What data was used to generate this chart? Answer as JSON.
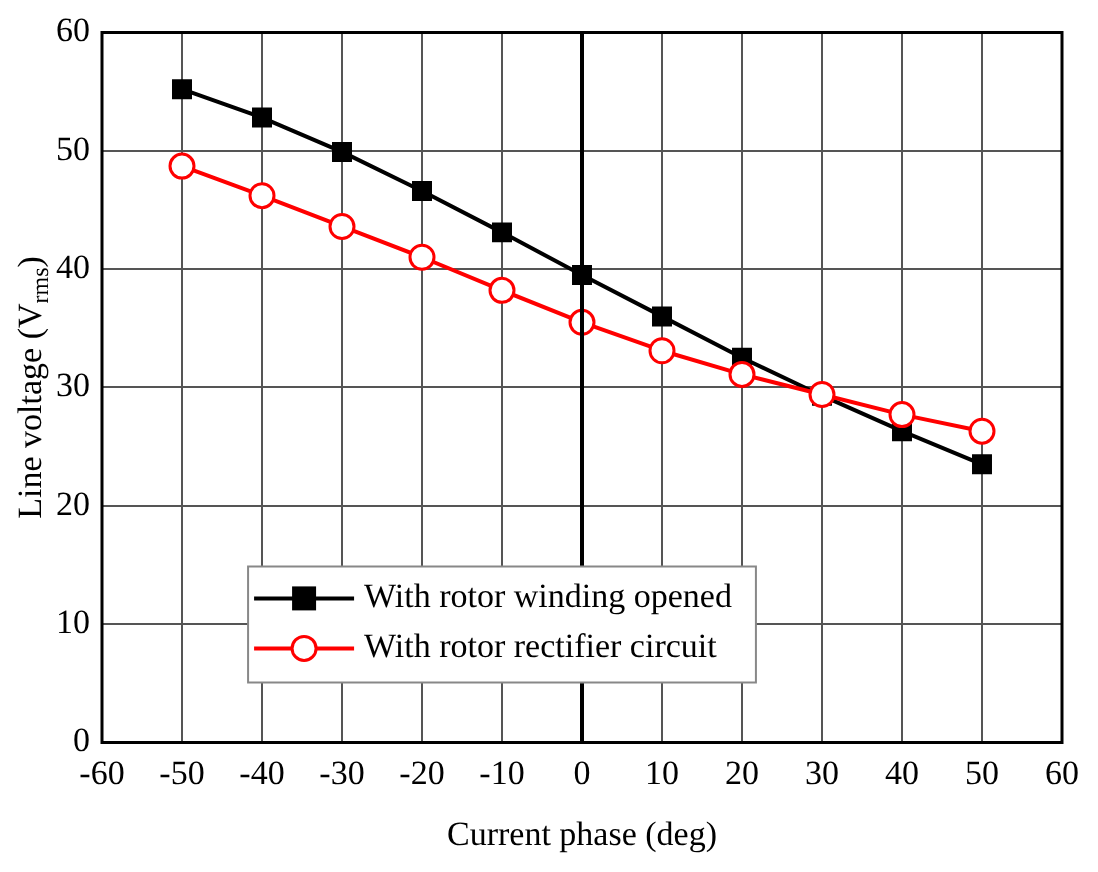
{
  "chart_data": {
    "type": "line",
    "xlabel": "Current phase (deg)",
    "ylabel": "Line voltage (V$_{rms}$)",
    "x": [
      -50,
      -40,
      -30,
      -20,
      -10,
      0,
      10,
      20,
      30,
      40,
      50
    ],
    "series": [
      {
        "name": "With rotor winding opened",
        "color": "#000000",
        "marker": "square",
        "values": [
          55.2,
          52.8,
          49.9,
          46.6,
          43.1,
          39.5,
          36.0,
          32.5,
          29.3,
          26.3,
          23.5
        ]
      },
      {
        "name": "With rotor rectifier circuit",
        "color": "#ff0000",
        "marker": "circle",
        "values": [
          48.7,
          46.2,
          43.6,
          41.0,
          38.2,
          35.5,
          33.1,
          31.1,
          29.4,
          27.7,
          26.3
        ]
      }
    ],
    "xlim": [
      -60,
      60
    ],
    "xticks": [
      -60,
      -50,
      -40,
      -30,
      -20,
      -10,
      0,
      10,
      20,
      30,
      40,
      50,
      60
    ],
    "ylim": [
      0,
      60
    ],
    "yticks": [
      0,
      10,
      20,
      30,
      40,
      50,
      60
    ],
    "grid": true,
    "legend": "bottom",
    "ref_lines": [
      {
        "axis": "x",
        "value": 0
      }
    ]
  }
}
